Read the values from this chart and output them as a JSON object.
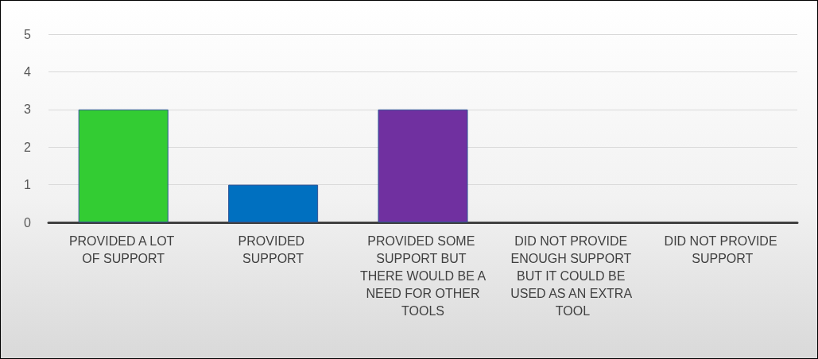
{
  "chart_data": {
    "type": "bar",
    "categories": [
      "PROVIDED A LOT OF SUPPORT",
      "PROVIDED SUPPORT",
      "PROVIDED SOME SUPPORT BUT THERE WOULD BE A NEED FOR OTHER TOOLS",
      "DID NOT PROVIDE ENOUGH SUPPORT BUT IT COULD BE USED AS AN EXTRA TOOL",
      "DID NOT PROVIDE SUPPORT"
    ],
    "values": [
      3,
      1,
      3,
      0,
      0
    ],
    "colors": [
      "#33cc33",
      "#0070c0",
      "#7030a0",
      "#4472c4",
      "#4472c4"
    ],
    "ylim": [
      0,
      5
    ],
    "yticks": [
      0,
      1,
      2,
      3,
      4,
      5
    ],
    "grid": "y"
  }
}
